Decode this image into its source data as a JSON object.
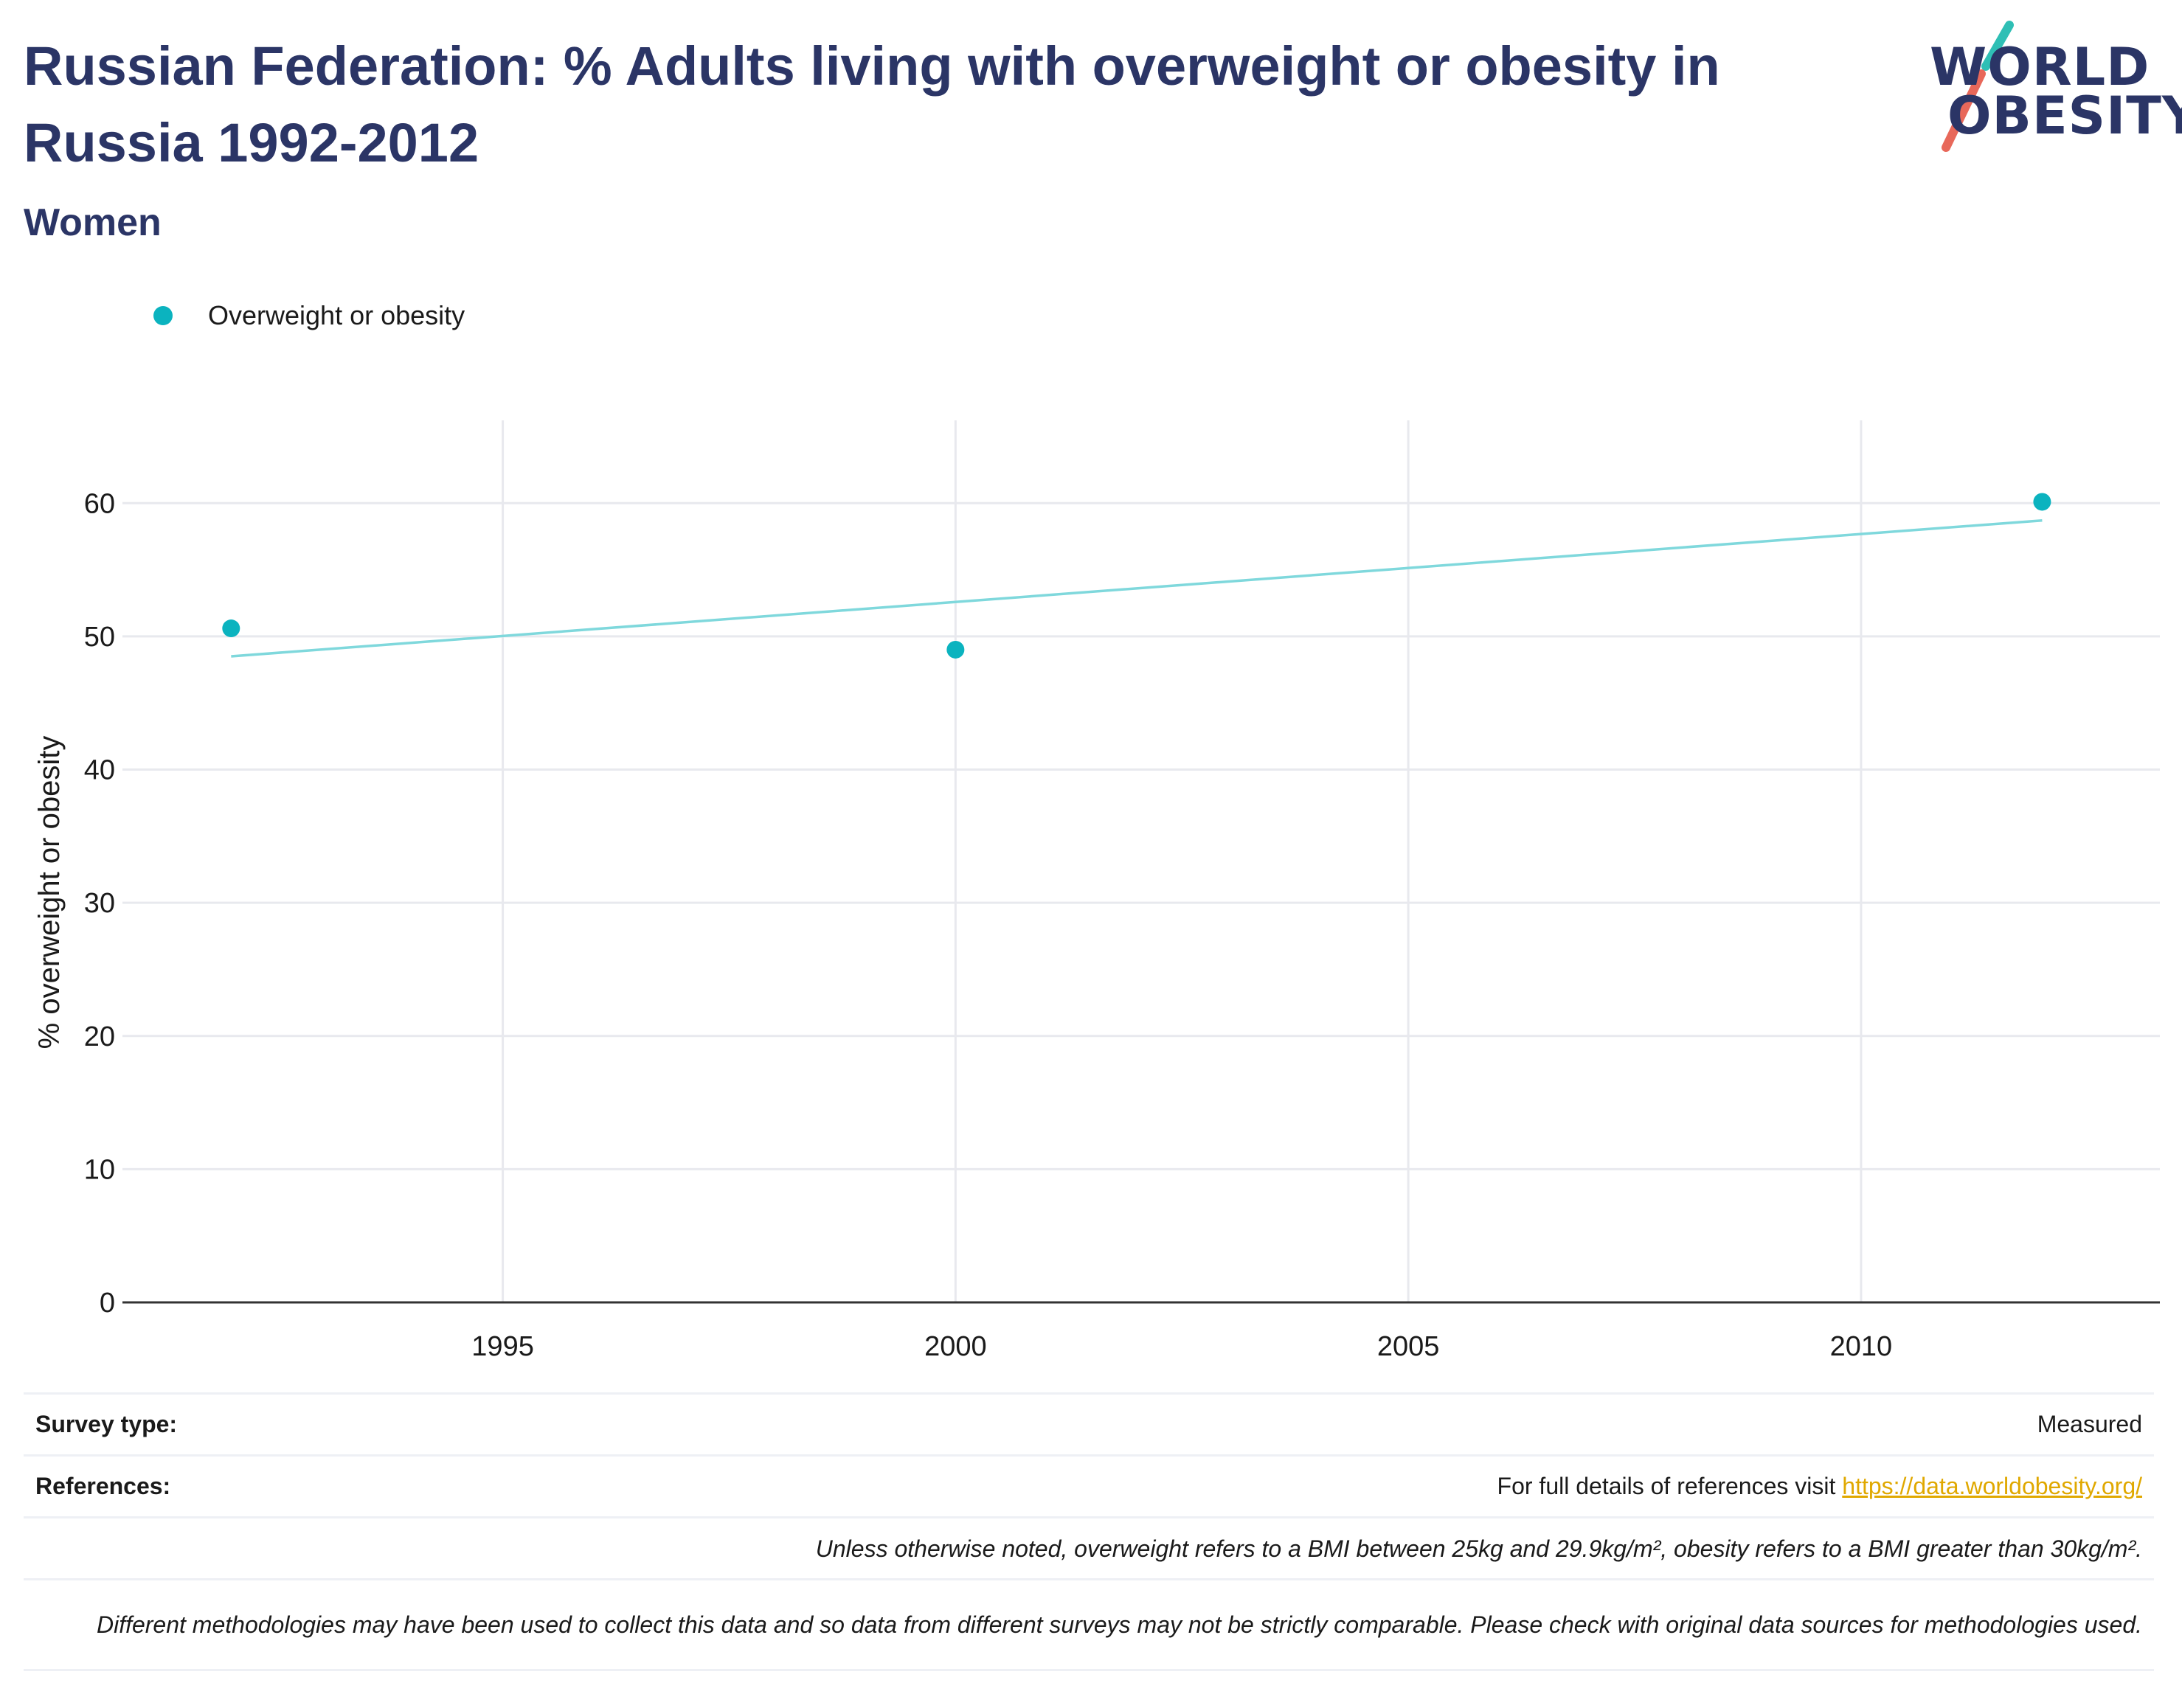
{
  "header": {
    "title": "Russian Federation: % Adults living with overweight or obesity in Russia 1992-2012",
    "subtitle": "Women"
  },
  "logo": {
    "line1": "WORLD",
    "line2": "OBESITY"
  },
  "legend": {
    "label": "Overweight or obesity"
  },
  "colors": {
    "series": "#0bb3bf",
    "trend": "#7fd8dc",
    "title": "#2b3566",
    "link": "#e0a800",
    "grid": "#e8e9ee"
  },
  "chart_data": {
    "type": "scatter",
    "title": "Russian Federation: % Adults living with overweight or obesity in Russia 1992-2012",
    "subtitle": "Women",
    "xlabel": "",
    "ylabel": "% overweight or obesity",
    "xlim": [
      1990.8,
      2013.3
    ],
    "ylim": [
      0,
      64
    ],
    "x_ticks": [
      1995,
      2000,
      2005,
      2010
    ],
    "y_ticks": [
      0,
      10,
      20,
      30,
      40,
      50,
      60
    ],
    "grid": true,
    "legend_position": "top-left",
    "series": [
      {
        "name": "Overweight or obesity",
        "x": [
          1992,
          2000,
          2012
        ],
        "y": [
          50.6,
          49.0,
          60.1
        ]
      }
    ],
    "trendline": {
      "x": [
        1992,
        2012
      ],
      "y": [
        48.5,
        58.7
      ]
    }
  },
  "footer": {
    "survey_type_label": "Survey type:",
    "survey_type_value": "Measured",
    "references_label": "References:",
    "references_text": "For full details of references visit ",
    "references_link": "https://data.worldobesity.org/",
    "note_bmi": "Unless otherwise noted, overweight refers to a BMI between 25kg and 29.9kg/m², obesity refers to a BMI greater than 30kg/m².",
    "note_methods": "Different methodologies may have been used to collect this data and so data from different surveys may not be strictly comparable. Please check with original data sources for methodologies used."
  }
}
